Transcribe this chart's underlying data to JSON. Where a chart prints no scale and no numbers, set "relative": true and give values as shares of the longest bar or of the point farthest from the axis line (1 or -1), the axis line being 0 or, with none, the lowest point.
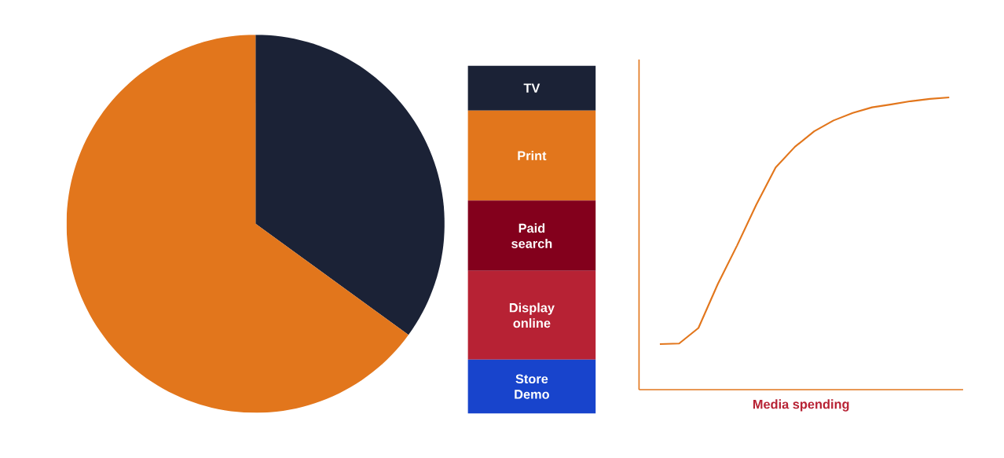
{
  "chart_data": [
    {
      "type": "pie",
      "categories": [
        null,
        null
      ],
      "values": [
        35,
        65
      ],
      "colors": [
        "#1b2236",
        "#e2761c"
      ]
    },
    {
      "type": "bar",
      "stacked": true,
      "relative": true,
      "categories": [
        null
      ],
      "series": [
        {
          "name": "Store Demo",
          "color": "#1844cc",
          "values": [
            0.155
          ]
        },
        {
          "name": "Display online",
          "color": "#b72234",
          "values": [
            0.255
          ]
        },
        {
          "name": "Paid search",
          "color": "#83001c",
          "values": [
            0.202
          ]
        },
        {
          "name": "Print",
          "color": "#e2761c",
          "values": [
            0.259
          ]
        },
        {
          "name": "TV",
          "color": "#1b2236",
          "values": [
            0.129
          ]
        }
      ]
    },
    {
      "type": "line",
      "relative": true,
      "xlabel": "Media spending",
      "color": "#e2761c",
      "marker": "none",
      "categories": [
        null,
        null,
        null,
        null,
        null,
        null,
        null,
        null,
        null,
        null,
        null,
        null,
        null,
        null,
        null,
        null
      ],
      "values": [
        0.156,
        0.158,
        0.211,
        0.361,
        0.493,
        0.633,
        0.76,
        0.831,
        0.884,
        0.921,
        0.947,
        0.966,
        0.976,
        0.987,
        0.995,
        1.0
      ]
    }
  ]
}
